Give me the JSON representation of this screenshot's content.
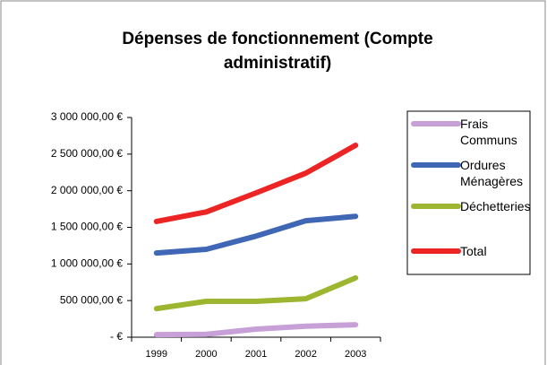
{
  "chart_data": {
    "type": "line",
    "title": "Dépenses de fonctionnement (Compte administratif)",
    "categories": [
      "1999",
      "2000",
      "2001",
      "2002",
      "2003"
    ],
    "series": [
      {
        "name": "Frais Communs",
        "color": "#c8a0d8",
        "values": [
          35000,
          40000,
          110000,
          150000,
          170000
        ]
      },
      {
        "name": "Ordures Ménagères",
        "color": "#3f67b5",
        "values": [
          1150000,
          1200000,
          1380000,
          1590000,
          1650000
        ]
      },
      {
        "name": "Déchetteries",
        "color": "#9db62f",
        "values": [
          390000,
          490000,
          490000,
          525000,
          810000
        ]
      },
      {
        "name": "Total",
        "color": "#ec2424",
        "values": [
          1580000,
          1710000,
          1970000,
          2240000,
          2620000
        ]
      }
    ],
    "ylim": [
      0,
      3000000
    ],
    "yticks": [
      {
        "value": 0,
        "label": "-   €"
      },
      {
        "value": 500000,
        "label": "500 000,00 €"
      },
      {
        "value": 1000000,
        "label": "1 000 000,00 €"
      },
      {
        "value": 1500000,
        "label": "1 500 000,00 €"
      },
      {
        "value": 2000000,
        "label": "2 000 000,00 €"
      },
      {
        "value": 2500000,
        "label": "2 500 000,00 €"
      },
      {
        "value": 3000000,
        "label": "3 000 000,00 €"
      }
    ],
    "legend": "right"
  }
}
